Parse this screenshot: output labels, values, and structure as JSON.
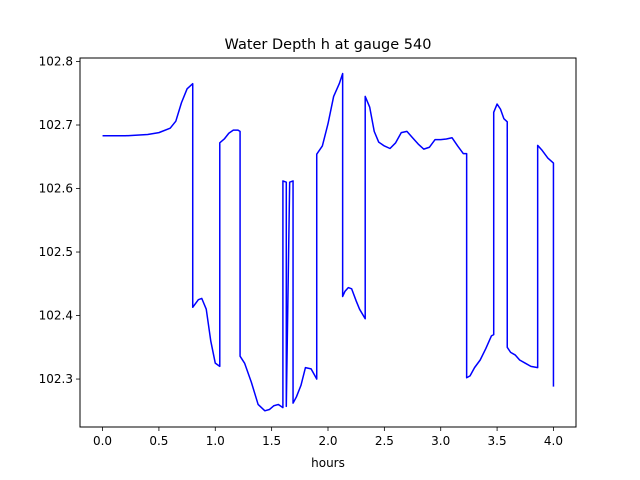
{
  "chart_data": {
    "type": "line",
    "title": "Water Depth h at gauge 540",
    "xlabel": "hours",
    "ylabel": "",
    "xlim": [
      -0.2,
      4.2
    ],
    "ylim": [
      102.2245,
      102.8055
    ],
    "xticks": [
      0.0,
      0.5,
      1.0,
      1.5,
      2.0,
      2.5,
      3.0,
      3.5,
      4.0
    ],
    "xtick_labels": [
      "0.0",
      "0.5",
      "1.0",
      "1.5",
      "2.0",
      "2.5",
      "3.0",
      "3.5",
      "4.0"
    ],
    "yticks": [
      102.3,
      102.4,
      102.5,
      102.6,
      102.7,
      102.8
    ],
    "ytick_labels": [
      "102.3",
      "102.4",
      "102.5",
      "102.6",
      "102.7",
      "102.8"
    ],
    "grid": false,
    "series": [
      {
        "name": "",
        "color": "#0000ff",
        "x": [
          0.0,
          0.2,
          0.4,
          0.5,
          0.6,
          0.65,
          0.7,
          0.75,
          0.8,
          0.8,
          0.85,
          0.88,
          0.92,
          0.96,
          1.0,
          1.04,
          1.04,
          1.08,
          1.12,
          1.16,
          1.2,
          1.22,
          1.22,
          1.26,
          1.32,
          1.38,
          1.44,
          1.48,
          1.52,
          1.56,
          1.6,
          1.6,
          1.63,
          1.63,
          1.66,
          1.69,
          1.69,
          1.72,
          1.76,
          1.8,
          1.85,
          1.9,
          1.9,
          1.95,
          2.0,
          2.05,
          2.1,
          2.13,
          2.13,
          2.15,
          2.18,
          2.21,
          2.25,
          2.28,
          2.33,
          2.33,
          2.37,
          2.41,
          2.45,
          2.5,
          2.55,
          2.6,
          2.65,
          2.7,
          2.75,
          2.8,
          2.85,
          2.9,
          2.95,
          3.0,
          3.05,
          3.1,
          3.15,
          3.2,
          3.23,
          3.23,
          3.26,
          3.3,
          3.35,
          3.4,
          3.45,
          3.47,
          3.47,
          3.5,
          3.53,
          3.56,
          3.59,
          3.59,
          3.62,
          3.66,
          3.7,
          3.75,
          3.8,
          3.86,
          3.86,
          3.9,
          3.95,
          4.0,
          4.0
        ],
        "y": [
          102.683,
          102.683,
          102.685,
          102.688,
          102.695,
          102.706,
          102.735,
          102.757,
          102.765,
          102.413,
          102.425,
          102.427,
          102.41,
          102.36,
          102.325,
          102.32,
          102.672,
          102.678,
          102.687,
          102.692,
          102.692,
          102.69,
          102.336,
          102.325,
          102.295,
          102.26,
          102.25,
          102.252,
          102.258,
          102.26,
          102.255,
          102.612,
          102.61,
          102.257,
          102.61,
          102.612,
          102.262,
          102.272,
          102.29,
          102.318,
          102.316,
          102.3,
          102.654,
          102.667,
          102.702,
          102.745,
          102.765,
          102.781,
          102.43,
          102.438,
          102.444,
          102.442,
          102.423,
          102.41,
          102.395,
          102.745,
          102.728,
          102.69,
          102.673,
          102.667,
          102.663,
          102.672,
          102.688,
          102.69,
          102.68,
          102.67,
          102.662,
          102.665,
          102.677,
          102.677,
          102.678,
          102.68,
          102.667,
          102.655,
          102.655,
          102.302,
          102.305,
          102.318,
          102.33,
          102.348,
          102.368,
          102.37,
          102.72,
          102.733,
          102.725,
          102.71,
          102.705,
          102.35,
          102.342,
          102.338,
          102.33,
          102.325,
          102.32,
          102.318,
          102.668,
          102.66,
          102.648,
          102.64,
          102.288
        ]
      }
    ]
  }
}
